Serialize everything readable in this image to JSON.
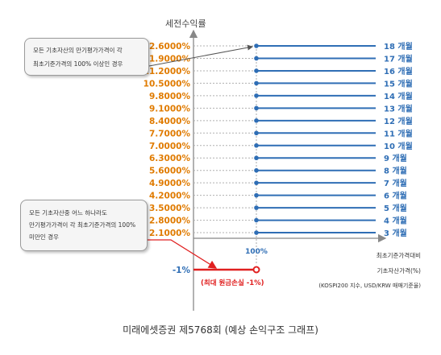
{
  "chart_data": {
    "type": "line",
    "ylabel": "세전수익률",
    "y_ticks": [
      "12.6000%",
      "11.9000%",
      "11.2000%",
      "10.5000%",
      "9.8000%",
      "9.1000%",
      "8.4000%",
      "7.7000%",
      "7.0000%",
      "6.3000%",
      "5.6000%",
      "4.9000%",
      "4.2000%",
      "3.5000%",
      "2.8000%",
      "2.1000%"
    ],
    "series": [
      {
        "name": "18 개월",
        "value": 12.6
      },
      {
        "name": "17 개월",
        "value": 11.9
      },
      {
        "name": "16 개월",
        "value": 11.2
      },
      {
        "name": "15 개월",
        "value": 10.5
      },
      {
        "name": "14 개월",
        "value": 9.8
      },
      {
        "name": "13 개월",
        "value": 9.1
      },
      {
        "name": "12 개월",
        "value": 8.4
      },
      {
        "name": "11 개월",
        "value": 7.7
      },
      {
        "name": "10 개월",
        "value": 7.0
      },
      {
        "name": "9 개월",
        "value": 6.3
      },
      {
        "name": "8 개월",
        "value": 5.6
      },
      {
        "name": "7 개월",
        "value": 4.9
      },
      {
        "name": "6 개월",
        "value": 4.2
      },
      {
        "name": "5 개월",
        "value": 3.5
      },
      {
        "name": "4 개월",
        "value": 2.8
      },
      {
        "name": "3 개월",
        "value": 2.1
      }
    ],
    "threshold_label": "100%",
    "loss": {
      "ytick": "-1%",
      "value": -1,
      "label": "(최대 원금손실 -1%)"
    },
    "xlabel_lines": [
      "최초기준가격대비",
      "기초자산가격(%)",
      "(KOSPI200 지수, USD/KRW 매매기준율)"
    ],
    "colors": {
      "tick": "#e07b00",
      "series": "#2f6eb5",
      "loss": "#e02020",
      "axis": "#888888"
    }
  },
  "callouts": {
    "top": [
      "모든 기초자산의 만기평가가격이 각",
      "최초기준가격의 100% 이상인 경우"
    ],
    "bottom": [
      "모든 기초자산중 어느 하나라도",
      "만기평가가격이 각 최초기준가격의 100%",
      "미만인 경우"
    ]
  },
  "caption": "미래에셋증권 제5768회 (예상 손익구조 그래프)"
}
